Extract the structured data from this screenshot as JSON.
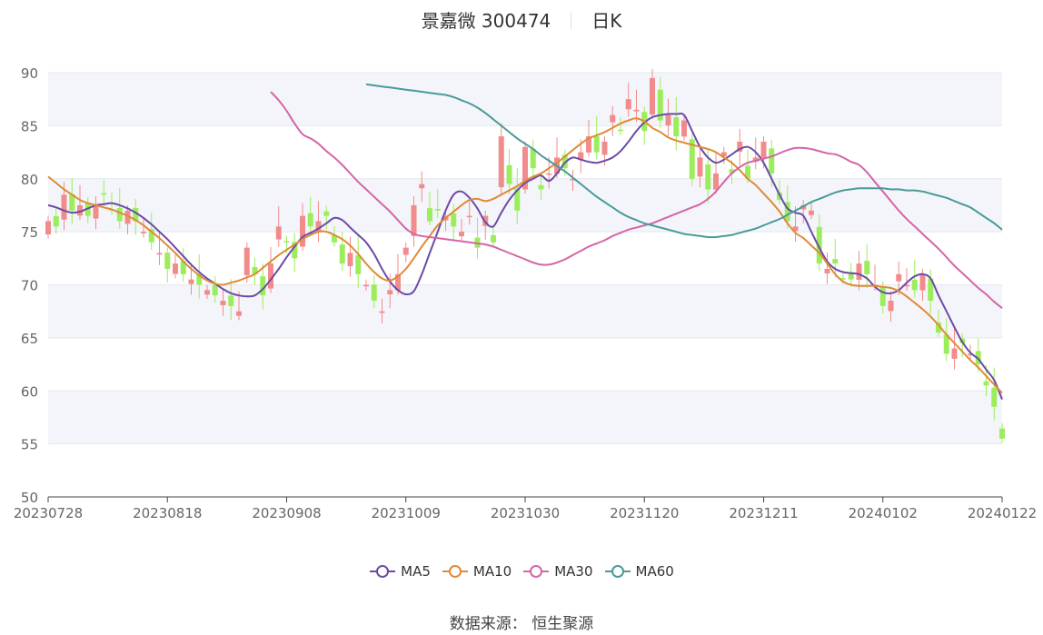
{
  "header": {
    "title": "景嘉微 300474",
    "period": "日K"
  },
  "source": {
    "label": "数据来源：",
    "name": "恒生聚源"
  },
  "colors": {
    "up": "#F28C8C",
    "down": "#9CED5C",
    "ma5": "#6C4BA6",
    "ma10": "#E08A36",
    "ma30": "#D465A8",
    "ma60": "#4A9A9A",
    "band": "#F3F5FA",
    "grid": "#E4E7EE",
    "axis": "#666666"
  },
  "chart_data": {
    "type": "candlestick",
    "y_ticks": [
      50,
      55,
      60,
      65,
      70,
      75,
      80,
      85,
      90
    ],
    "ylim": [
      50,
      90
    ],
    "x_tick_labels": [
      "20230728",
      "20230818",
      "20230908",
      "20231009",
      "20231030",
      "20231120",
      "20231211",
      "20240102",
      "20240122"
    ],
    "x_tick_index": [
      0,
      15,
      30,
      45,
      60,
      75,
      90,
      105,
      120
    ],
    "grid": true,
    "legend_position": "bottom",
    "candle_count": 121,
    "series": [
      {
        "name": "MA5",
        "key": "ma5",
        "values": [
          77.5,
          77.3,
          77.0,
          76.8,
          76.9,
          77.2,
          77.5,
          77.6,
          77.7,
          77.5,
          77.2,
          76.8,
          76.3,
          75.7,
          75.0,
          74.3,
          73.5,
          72.7,
          71.9,
          71.2,
          70.6,
          70.1,
          69.6,
          69.2,
          69.0,
          68.9,
          69.0,
          69.6,
          70.5,
          71.5,
          72.6,
          73.6,
          74.5,
          74.9,
          75.3,
          75.8,
          76.3,
          76.1,
          75.4,
          74.7,
          74.0,
          72.9,
          71.5,
          70.3,
          69.5,
          69.1,
          69.4,
          71.0,
          73.0,
          75.0,
          77.0,
          78.5,
          78.8,
          78.2,
          77.2,
          75.9,
          75.5,
          76.8,
          78.0,
          78.9,
          79.6,
          80.0,
          80.3,
          79.8,
          80.5,
          81.5,
          82.0,
          81.8,
          81.6,
          81.5,
          81.7,
          82.0,
          82.6,
          83.5,
          84.5,
          85.3,
          85.8,
          86.0,
          86.1,
          86.1,
          86.0,
          84.5,
          83.0,
          82.0,
          81.5,
          81.8,
          82.3,
          82.8,
          83.0,
          82.5,
          81.5,
          80.0,
          78.5,
          77.2,
          76.8,
          76.5,
          75.0,
          73.5,
          72.2,
          71.5,
          71.2,
          71.1,
          71.0,
          70.6,
          69.8,
          69.3,
          69.2,
          69.5,
          70.2,
          70.8,
          71.0,
          70.6,
          69.0,
          67.5,
          66.0,
          64.6,
          63.6,
          63.0,
          62.0,
          61.0,
          59.2
        ]
      },
      {
        "name": "MA10",
        "key": "ma10",
        "values": [
          80.2,
          79.6,
          79.0,
          78.5,
          78.0,
          77.7,
          77.5,
          77.3,
          77.1,
          76.8,
          76.5,
          76.1,
          75.6,
          75.0,
          74.4,
          73.7,
          73.0,
          72.2,
          71.5,
          70.9,
          70.4,
          70.1,
          70.0,
          70.2,
          70.4,
          70.7,
          71.0,
          71.6,
          72.2,
          72.8,
          73.3,
          73.8,
          74.3,
          74.7,
          75.0,
          75.0,
          74.7,
          74.3,
          73.7,
          72.9,
          72.0,
          71.2,
          70.6,
          70.4,
          70.8,
          71.5,
          72.5,
          73.6,
          74.6,
          75.6,
          76.3,
          76.9,
          77.5,
          78.0,
          78.1,
          77.9,
          78.1,
          78.5,
          78.9,
          79.3,
          79.8,
          80.2,
          80.5,
          81.0,
          81.5,
          82.1,
          82.7,
          83.3,
          83.8,
          84.1,
          84.4,
          84.8,
          85.2,
          85.5,
          85.7,
          85.4,
          84.8,
          84.4,
          83.9,
          83.6,
          83.4,
          83.2,
          83.0,
          82.8,
          82.5,
          82.0,
          81.5,
          80.8,
          80.0,
          79.4,
          78.6,
          77.8,
          76.9,
          75.8,
          74.9,
          74.4,
          73.7,
          73.0,
          72.0,
          71.0,
          70.3,
          70.0,
          69.9,
          69.9,
          69.9,
          69.8,
          69.7,
          69.4,
          68.9,
          68.3,
          67.7,
          67.0,
          66.2,
          65.3,
          64.5,
          63.7,
          62.9,
          62.2,
          61.4,
          60.6,
          59.8
        ]
      },
      {
        "name": "MA30",
        "key": "ma30",
        "values": [
          88.2,
          87.4,
          86.4,
          85.2,
          84.2,
          83.8,
          83.3,
          82.6,
          82.0,
          81.3,
          80.5,
          79.7,
          79.0,
          78.3,
          77.6,
          76.9,
          76.1,
          75.3,
          74.8,
          74.6,
          74.5,
          74.4,
          74.3,
          74.2,
          74.1,
          74.0,
          73.9,
          73.8,
          73.6,
          73.3,
          73.0,
          72.7,
          72.4,
          72.1,
          71.9,
          71.9,
          72.1,
          72.4,
          72.8,
          73.2,
          73.6,
          73.9,
          74.2,
          74.6,
          74.9,
          75.2,
          75.4,
          75.6,
          75.8,
          76.1,
          76.4,
          76.7,
          77.0,
          77.3,
          77.6,
          78.1,
          78.8,
          79.7,
          80.5,
          81.1,
          81.5,
          81.7,
          81.9,
          82.1,
          82.4,
          82.7,
          82.9,
          82.9,
          82.8,
          82.6,
          82.4,
          82.3,
          82.0,
          81.6,
          81.3,
          80.6,
          79.7,
          78.8,
          77.9,
          77.0,
          76.2,
          75.5,
          74.8,
          74.1,
          73.4,
          72.6,
          71.8,
          71.1,
          70.4,
          69.7,
          69.1,
          68.4,
          67.8
        ]
      },
      {
        "name": "MA60",
        "key": "ma60",
        "values": [
          88.9,
          88.8,
          88.7,
          88.6,
          88.5,
          88.4,
          88.3,
          88.2,
          88.1,
          88.0,
          87.9,
          87.7,
          87.4,
          87.1,
          86.7,
          86.2,
          85.6,
          85.0,
          84.4,
          83.8,
          83.3,
          82.8,
          82.2,
          81.7,
          81.2,
          80.7,
          80.1,
          79.5,
          78.9,
          78.3,
          77.8,
          77.3,
          76.8,
          76.4,
          76.1,
          75.8,
          75.6,
          75.4,
          75.2,
          75.0,
          74.8,
          74.7,
          74.6,
          74.5,
          74.5,
          74.6,
          74.7,
          74.9,
          75.1,
          75.3,
          75.6,
          75.9,
          76.2,
          76.6,
          77.0,
          77.4,
          77.8,
          78.1,
          78.4,
          78.7,
          78.9,
          79.0,
          79.1,
          79.1,
          79.1,
          79.1,
          79.0,
          79.0,
          78.9,
          78.9,
          78.8,
          78.6,
          78.4,
          78.2,
          77.9,
          77.6,
          77.3,
          76.8,
          76.3,
          75.8,
          75.2
        ]
      }
    ],
    "series_start_index": {
      "ma5": 0,
      "ma10": 0,
      "ma30": 28,
      "ma60": 40
    },
    "closes": [
      76.0,
      75.5,
      78.5,
      77.0,
      77.5,
      76.5,
      77.5,
      78.5,
      77.0,
      76.0,
      77.0,
      76.0,
      75.0,
      74.0,
      73.0,
      71.5,
      72.0,
      71.0,
      70.5,
      70.0,
      69.5,
      69.0,
      68.5,
      68.0,
      67.5,
      73.5,
      71.0,
      69.0,
      72.0,
      75.5,
      74.0,
      72.5,
      76.5,
      75.5,
      76.0,
      76.5,
      74.0,
      72.0,
      73.0,
      71.0,
      70.0,
      68.5,
      67.5,
      69.5,
      71.0,
      73.5,
      77.5,
      79.5,
      76.0,
      77.0,
      76.5,
      75.5,
      75.0,
      76.5,
      73.5,
      76.5,
      74.0,
      84.0,
      79.5,
      77.0,
      83.0,
      81.0,
      79.0,
      80.5,
      82.0,
      81.0,
      80.0,
      82.5,
      84.0,
      82.5,
      83.5,
      86.0,
      84.5,
      87.5,
      86.5,
      84.5,
      89.5,
      85.5,
      86.0,
      84.0,
      85.5,
      80.0,
      82.0,
      79.0,
      80.5,
      82.5,
      80.5,
      83.5,
      80.0,
      82.0,
      83.5,
      80.5,
      78.0,
      76.0,
      75.5,
      77.5,
      77.0,
      72.0,
      71.5,
      72.0,
      70.5,
      70.5,
      72.0,
      71.0,
      70.0,
      68.0,
      68.5,
      71.0,
      70.0,
      69.5,
      71.0,
      68.5,
      65.5,
      63.5,
      64.0,
      64.5,
      63.5,
      62.5,
      60.5,
      58.5,
      55.5
    ]
  }
}
